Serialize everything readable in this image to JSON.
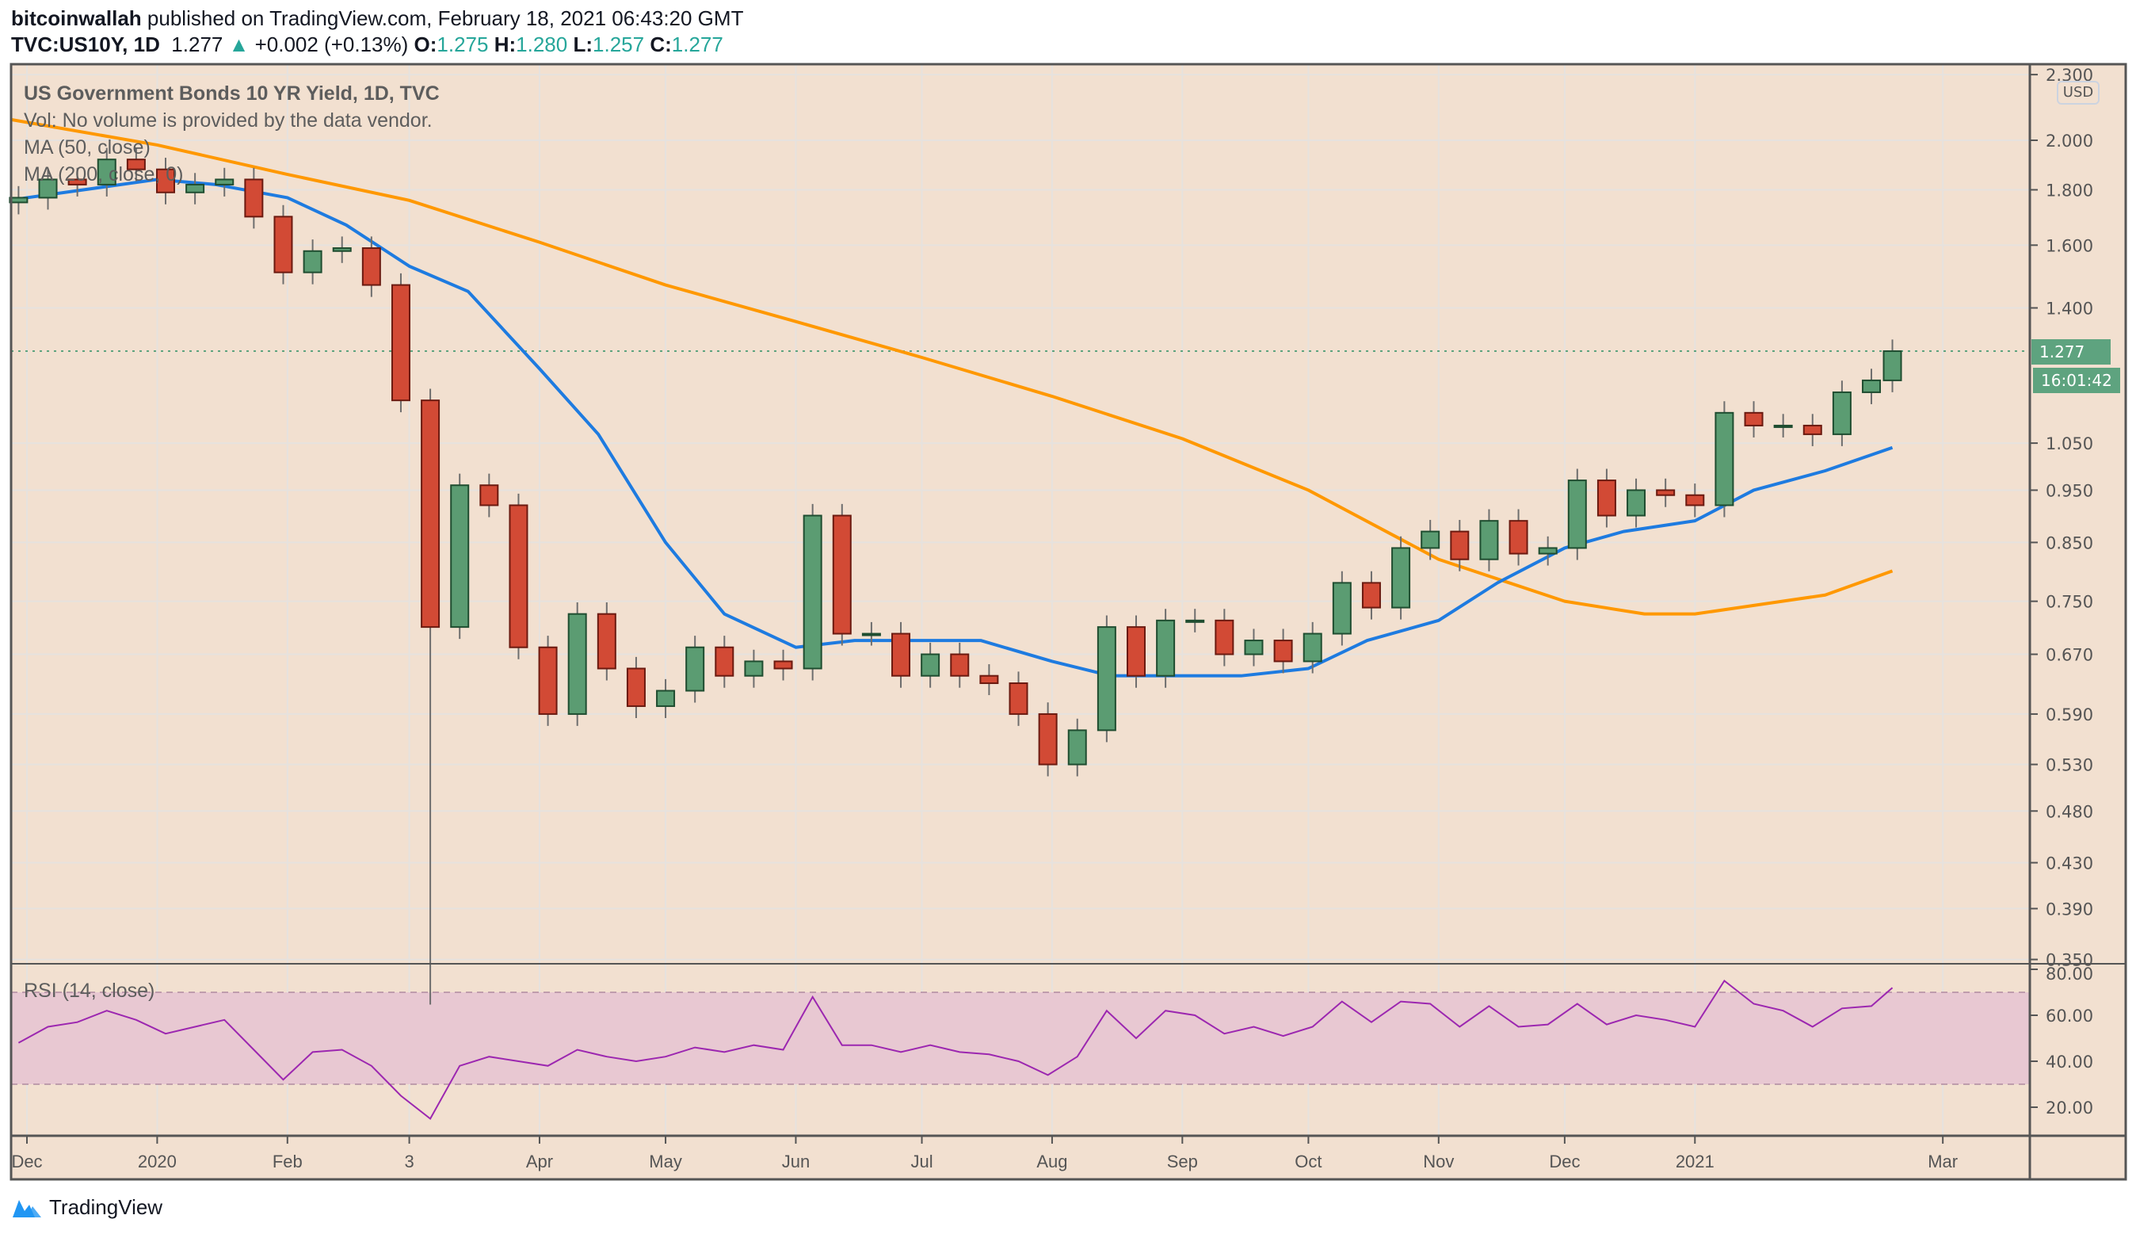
{
  "header": {
    "author": "bitcoinwallah",
    "published_text": "published on TradingView.com, February 18, 2021 06:43:20 GMT",
    "symbol": "TVC:US10Y, 1D",
    "last": "1.277",
    "change": "+0.002 (+0.13%)",
    "o_label": "O:",
    "o": "1.275",
    "h_label": "H:",
    "h": "1.280",
    "l_label": "L:",
    "l": "1.257",
    "c_label": "C:",
    "c": "1.277",
    "up_icon": "triangle-up-icon"
  },
  "legend": {
    "title": "US Government Bonds 10 YR Yield, 1D, TVC",
    "vol": "Vol: No volume is provided by the data vendor.",
    "ma50": "MA (50, close)",
    "ma200": "MA (200, close, 0)",
    "rsi": "RSI (14, close)"
  },
  "price_axis": {
    "currency": "USD",
    "ticks": [
      "2.300",
      "2.000",
      "1.800",
      "1.600",
      "1.400",
      "1.050",
      "0.950",
      "0.850",
      "0.750",
      "0.670",
      "0.590",
      "0.530",
      "0.480",
      "0.430",
      "0.390",
      "0.350"
    ],
    "scale": "log",
    "last_price_label": "1.277",
    "countdown_label": "16:01:42"
  },
  "rsi_axis": {
    "ticks": [
      "80.00",
      "60.00",
      "40.00",
      "20.00"
    ],
    "band": [
      30,
      70
    ]
  },
  "time_axis": {
    "ticks": [
      {
        "label": "Dec",
        "date": "2019-12-01"
      },
      {
        "label": "2020",
        "date": "2020-01-01"
      },
      {
        "label": "Feb",
        "date": "2020-02-01"
      },
      {
        "label": "3",
        "date": "2020-03-01"
      },
      {
        "label": "Apr",
        "date": "2020-04-01"
      },
      {
        "label": "May",
        "date": "2020-05-01"
      },
      {
        "label": "Jun",
        "date": "2020-06-01"
      },
      {
        "label": "Jul",
        "date": "2020-07-01"
      },
      {
        "label": "Aug",
        "date": "2020-08-01"
      },
      {
        "label": "Sep",
        "date": "2020-09-01"
      },
      {
        "label": "Oct",
        "date": "2020-10-01"
      },
      {
        "label": "Nov",
        "date": "2020-11-01"
      },
      {
        "label": "Dec",
        "date": "2020-12-01"
      },
      {
        "label": "2021",
        "date": "2021-01-01"
      },
      {
        "label": "Mar",
        "date": "2021-03-01"
      }
    ]
  },
  "colors": {
    "background": "#f2e0d0",
    "up": "#5b9c72",
    "up_border": "#1f4d30",
    "down": "#d24a35",
    "down_border": "#6b1a10",
    "ma50": "#1e7be0",
    "ma200": "#ff9800",
    "rsi": "#9c27b0",
    "rsi_band": "#e8c8d2",
    "accent": "#26a69a"
  },
  "chart_data": {
    "type": "candlestick",
    "x": [
      "2019-11-29",
      "2019-12-06",
      "2019-12-13",
      "2019-12-20",
      "2019-12-27",
      "2020-01-03",
      "2020-01-10",
      "2020-01-17",
      "2020-01-24",
      "2020-01-31",
      "2020-02-07",
      "2020-02-14",
      "2020-02-21",
      "2020-02-28",
      "2020-03-06",
      "2020-03-13",
      "2020-03-20",
      "2020-03-27",
      "2020-04-03",
      "2020-04-10",
      "2020-04-17",
      "2020-04-24",
      "2020-05-01",
      "2020-05-08",
      "2020-05-15",
      "2020-05-22",
      "2020-05-29",
      "2020-06-05",
      "2020-06-12",
      "2020-06-19",
      "2020-06-26",
      "2020-07-03",
      "2020-07-10",
      "2020-07-17",
      "2020-07-24",
      "2020-07-31",
      "2020-08-07",
      "2020-08-14",
      "2020-08-21",
      "2020-08-28",
      "2020-09-04",
      "2020-09-11",
      "2020-09-18",
      "2020-09-25",
      "2020-10-02",
      "2020-10-09",
      "2020-10-16",
      "2020-10-23",
      "2020-10-30",
      "2020-11-06",
      "2020-11-13",
      "2020-11-20",
      "2020-11-27",
      "2020-12-04",
      "2020-12-11",
      "2020-12-18",
      "2020-12-25",
      "2021-01-01",
      "2021-01-08",
      "2021-01-15",
      "2021-01-22",
      "2021-01-29",
      "2021-02-05",
      "2021-02-12",
      "2021-02-17"
    ],
    "close": [
      1.77,
      1.84,
      1.82,
      1.92,
      1.88,
      1.79,
      1.82,
      1.84,
      1.7,
      1.51,
      1.58,
      1.59,
      1.47,
      1.15,
      0.71,
      0.96,
      0.92,
      0.68,
      0.59,
      0.73,
      0.65,
      0.6,
      0.62,
      0.68,
      0.64,
      0.66,
      0.65,
      0.9,
      0.7,
      0.7,
      0.64,
      0.67,
      0.64,
      0.63,
      0.59,
      0.53,
      0.57,
      0.71,
      0.64,
      0.72,
      0.72,
      0.67,
      0.69,
      0.66,
      0.7,
      0.78,
      0.74,
      0.84,
      0.87,
      0.82,
      0.89,
      0.83,
      0.84,
      0.97,
      0.9,
      0.95,
      0.94,
      0.92,
      1.12,
      1.09,
      1.09,
      1.07,
      1.17,
      1.2,
      1.277
    ],
    "extreme_low": {
      "date": "2020-03-06",
      "value": 0.318
    },
    "ma50": {
      "x": [
        "2019-11-25",
        "2019-12-01",
        "2020-01-01",
        "2020-01-15",
        "2020-02-01",
        "2020-02-15",
        "2020-03-01",
        "2020-03-15",
        "2020-04-01",
        "2020-04-15",
        "2020-05-01",
        "2020-05-15",
        "2020-06-01",
        "2020-06-15",
        "2020-07-01",
        "2020-07-15",
        "2020-08-01",
        "2020-08-15",
        "2020-09-01",
        "2020-09-15",
        "2020-10-01",
        "2020-10-15",
        "2020-11-01",
        "2020-11-15",
        "2020-12-01",
        "2020-12-15",
        "2021-01-01",
        "2021-01-15",
        "2021-02-01",
        "2021-02-17"
      ],
      "values": [
        1.76,
        1.77,
        1.84,
        1.82,
        1.77,
        1.67,
        1.53,
        1.45,
        1.23,
        1.07,
        0.85,
        0.73,
        0.68,
        0.69,
        0.69,
        0.69,
        0.66,
        0.64,
        0.64,
        0.64,
        0.65,
        0.69,
        0.72,
        0.78,
        0.84,
        0.87,
        0.89,
        0.95,
        0.99,
        1.04
      ]
    },
    "ma200": {
      "x": [
        "2019-11-25",
        "2020-01-01",
        "2020-02-01",
        "2020-03-01",
        "2020-04-01",
        "2020-05-01",
        "2020-06-01",
        "2020-07-01",
        "2020-08-01",
        "2020-09-01",
        "2020-10-01",
        "2020-11-01",
        "2020-12-01",
        "2020-12-20",
        "2021-01-01",
        "2021-02-01",
        "2021-02-17"
      ],
      "values": [
        2.09,
        1.98,
        1.86,
        1.76,
        1.61,
        1.47,
        1.36,
        1.26,
        1.16,
        1.06,
        0.95,
        0.82,
        0.75,
        0.73,
        0.73,
        0.76,
        0.8
      ]
    },
    "rsi": [
      48,
      55,
      57,
      62,
      58,
      52,
      55,
      58,
      45,
      32,
      44,
      45,
      38,
      25,
      15,
      38,
      42,
      40,
      38,
      45,
      42,
      40,
      42,
      46,
      44,
      47,
      45,
      68,
      47,
      47,
      44,
      47,
      44,
      43,
      40,
      34,
      42,
      62,
      50,
      62,
      60,
      52,
      55,
      51,
      55,
      66,
      57,
      66,
      65,
      55,
      64,
      55,
      56,
      65,
      56,
      60,
      58,
      55,
      75,
      65,
      62,
      55,
      63,
      64,
      72
    ],
    "ylim": [
      0.35,
      2.3
    ],
    "rsi_ylim": [
      10,
      85
    ]
  },
  "footer": {
    "brand": "TradingView"
  }
}
